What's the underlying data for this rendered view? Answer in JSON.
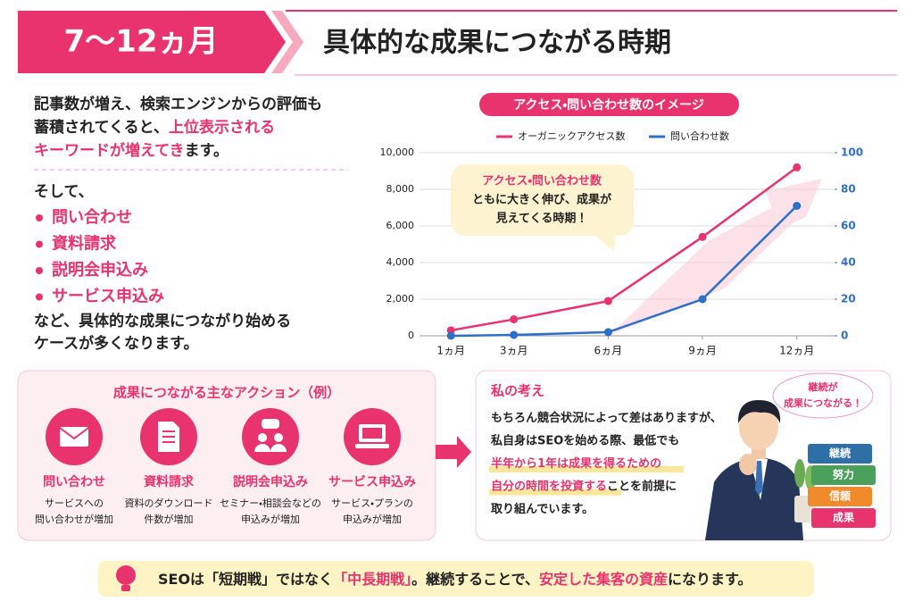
{
  "header": {
    "period": "7〜12ヵ月",
    "title": "具体的な成果につながる時期"
  },
  "intro": [
    [
      {
        "text": "記事数が増え、検索エンジンからの評価も"
      }
    ],
    [
      {
        "text": "蓄積されてくると、"
      },
      {
        "text": "上位表示される",
        "emphasis": true
      }
    ],
    [
      {
        "text": "キーワードが増えてき",
        "emphasis": true
      },
      {
        "text": "ます。"
      }
    ]
  ],
  "then": "そして、",
  "results": [
    "問い合わせ",
    "資料請求",
    "説明会申込み",
    "サービス申込み"
  ],
  "outro": [
    "など、具体的な成果につながり始める",
    "ケースが多くなります。"
  ],
  "chart_data": {
    "type": "line",
    "title": "アクセス・問い合わせ数のイメージ",
    "callout": [
      "アクセス・問い合わせ数",
      "ともに大きく伸び、成果が",
      "見えてくる時期！"
    ],
    "x": [
      1,
      3,
      6,
      9,
      12
    ],
    "xlim": [
      0,
      13.2
    ],
    "xticks": [
      {
        "value": 1,
        "label": "1ヵ月"
      },
      {
        "value": 3,
        "label": "3ヵ月"
      },
      {
        "value": 6,
        "label": "6ヵ月"
      },
      {
        "value": 9,
        "label": "9ヵ月"
      },
      {
        "value": 12,
        "label": "12ヵ月"
      }
    ],
    "ylim": [
      0,
      10000
    ],
    "yticks": [
      0,
      {
        "value": 2000,
        "label": "2,000"
      },
      {
        "value": 4000,
        "label": "4,000"
      },
      {
        "value": 6000,
        "label": "6,000"
      },
      {
        "value": 8000,
        "label": "8,000"
      },
      {
        "value": 10000,
        "label": "10,000"
      }
    ],
    "y2lim": [
      0,
      100
    ],
    "y2ticks": [
      0,
      20,
      40,
      60,
      80,
      100
    ],
    "grid": true,
    "series": [
      {
        "name": "オーガニックアクセス数",
        "color": "#e8336e",
        "values": [
          300,
          900,
          1900,
          5400,
          9200
        ]
      },
      {
        "name": "問い合わせ数",
        "color": "#2e6fc9",
        "axis": "y2",
        "values": [
          0,
          0.5,
          2,
          20,
          71
        ]
      }
    ]
  },
  "actions": {
    "title": "成果につながる主なアクション（例）",
    "items": [
      {
        "label": "問い合わせ",
        "desc": [
          "サービスへの",
          "問い合わせが増加"
        ]
      },
      {
        "label": "資料請求",
        "desc": [
          "資料のダウンロード",
          "件数が増加"
        ]
      },
      {
        "label": "説明会申込み",
        "desc": [
          "セミナー・相談会などの",
          "申込みが増加"
        ]
      },
      {
        "label": "サービス申込み",
        "desc": [
          "サービス・プランの",
          "申込みが増加"
        ]
      }
    ]
  },
  "opinion": {
    "title": "私の考え",
    "lines": [
      [
        {
          "text": "もちろん競合状況によって差はありますが、"
        }
      ],
      [
        {
          "text": "私自身はSEOを始める際、最低でも"
        }
      ],
      [
        {
          "text": "半年から1年は成果を得るための",
          "emphasis": true
        }
      ],
      [
        {
          "text": "自分の時間を投資する",
          "emphasis": true
        },
        {
          "text": "ことを前提に"
        }
      ],
      [
        {
          "text": "取り組んでいます。"
        }
      ]
    ],
    "bubble": [
      "継続が",
      "成果につながる！"
    ],
    "books": [
      "継続",
      "努力",
      "信頼",
      "成果"
    ]
  },
  "footer": [
    {
      "text": "SEOは「短期戦」ではなく"
    },
    {
      "text": "「中長期戦」",
      "emphasis": true
    },
    {
      "text": "。継続することで、"
    },
    {
      "text": "安定した集客の資産",
      "emphasis": true
    },
    {
      "text": "になります。"
    }
  ]
}
